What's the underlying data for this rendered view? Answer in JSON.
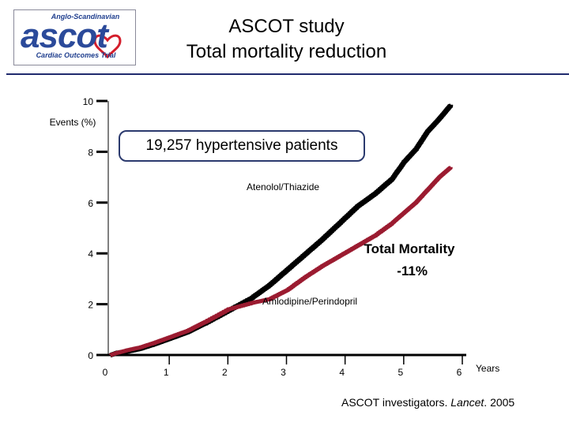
{
  "logo": {
    "top_text": "Anglo-Scandinavian",
    "main_text": "ascot",
    "bottom_text": "Cardiac Outcomes Trial"
  },
  "title": {
    "line1": "ASCOT study",
    "line2": "Total mortality reduction"
  },
  "callout": "19,257 hypertensive patients",
  "citation": {
    "prefix": "ASCOT investigators. ",
    "journal": "Lancet",
    "suffix": ". 2005"
  },
  "chart_data": {
    "type": "line",
    "title": "Total mortality reduction",
    "ylabel": "Events (%)",
    "xlabel": "Years",
    "ylim": [
      0,
      10
    ],
    "xlim": [
      0,
      6
    ],
    "y_ticks": [
      0,
      2,
      4,
      6,
      8,
      10
    ],
    "y_tick_labels": [
      "0",
      "2",
      "4",
      "6",
      "8",
      "10"
    ],
    "x_ticks": [
      0,
      1,
      2,
      3,
      4,
      5,
      6
    ],
    "x_tick_labels": [
      "0",
      "1",
      "2",
      "3",
      "4",
      "5",
      "6"
    ],
    "colors": {
      "atenolol": "#000000",
      "amlodipine": "#9b1b30",
      "axis": "#000000"
    },
    "series": [
      {
        "name": "Atenolol/Thiazide",
        "x": [
          0,
          0.1,
          0.3,
          0.5,
          0.7,
          1.0,
          1.3,
          1.6,
          2.0,
          2.4,
          2.7,
          3.0,
          3.3,
          3.6,
          3.9,
          4.2,
          4.5,
          4.8,
          5.0,
          5.2,
          5.4,
          5.6,
          5.8
        ],
        "values": [
          0,
          0.08,
          0.15,
          0.25,
          0.4,
          0.65,
          0.9,
          1.25,
          1.75,
          2.25,
          2.75,
          3.35,
          3.95,
          4.55,
          5.2,
          5.85,
          6.35,
          6.95,
          7.6,
          8.1,
          8.8,
          9.3,
          9.85
        ]
      },
      {
        "name": "Amlodipine/Perindopril",
        "x": [
          0,
          0.1,
          0.3,
          0.5,
          0.7,
          1.0,
          1.3,
          1.6,
          2.0,
          2.4,
          2.7,
          3.0,
          3.3,
          3.6,
          3.9,
          4.2,
          4.5,
          4.8,
          5.0,
          5.2,
          5.4,
          5.6,
          5.8
        ],
        "values": [
          0,
          0.08,
          0.2,
          0.3,
          0.45,
          0.7,
          0.95,
          1.3,
          1.8,
          2.05,
          2.2,
          2.55,
          3.05,
          3.5,
          3.9,
          4.3,
          4.7,
          5.2,
          5.6,
          6.0,
          6.5,
          7.0,
          7.4
        ]
      }
    ],
    "annotations": {
      "atenolol_label": "Atenolol/Thiazide",
      "amlodipine_label": "Amlodipine/Perindopril",
      "reduction_line1": "Total Mortality",
      "reduction_line2": "-11%"
    }
  }
}
